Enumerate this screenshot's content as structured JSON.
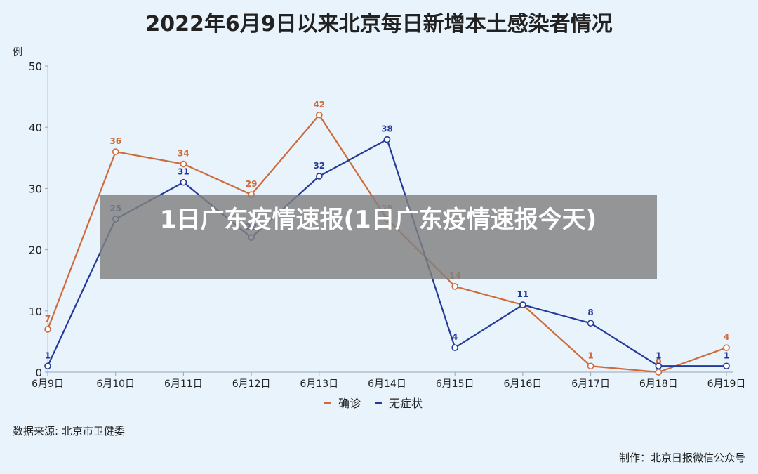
{
  "chart_data": {
    "type": "line",
    "title": "2022年6月9日以来北京每日新增本土感染者情况",
    "ylabel": "例",
    "ylim": [
      0,
      50
    ],
    "yticks": [
      0,
      10,
      20,
      30,
      40,
      50
    ],
    "categories": [
      "6月9日",
      "6月10日",
      "6月11日",
      "6月12日",
      "6月13日",
      "6月14日",
      "6月15日",
      "6月16日",
      "6月17日",
      "6月18日",
      "6月19日"
    ],
    "series": [
      {
        "name": "确诊",
        "color": "#cf6a3a",
        "values": [
          7,
          36,
          34,
          29,
          42,
          25,
          14,
          11,
          1,
          0,
          4
        ]
      },
      {
        "name": "无症状",
        "color": "#243a9a",
        "values": [
          1,
          25,
          31,
          22,
          32,
          38,
          4,
          11,
          8,
          1,
          1
        ]
      }
    ],
    "legend_position": "bottom",
    "grid": false,
    "source": "数据来源: 北京市卫健委",
    "credit": "制作：北京日报微信公众号"
  },
  "overlay": {
    "text": "1日广东疫情速报(1日广东疫情速报今天)"
  }
}
